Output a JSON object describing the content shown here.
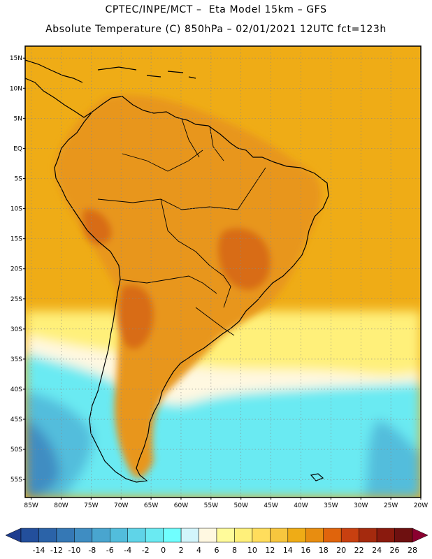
{
  "header": {
    "line1": "CPTEC/INPE/MCT –  Eta Model 15km – GFS",
    "line2": "Absolute Temperature (C) 850hPa – 02/01/2021 12UTC fct=123h"
  },
  "map": {
    "lat_labels": [
      "15N",
      "10N",
      "5N",
      "EQ",
      "5S",
      "10S",
      "15S",
      "20S",
      "25S",
      "30S",
      "35S",
      "40S",
      "45S",
      "50S",
      "55S"
    ],
    "lat_values": [
      15,
      10,
      5,
      0,
      -5,
      -10,
      -15,
      -20,
      -25,
      -30,
      -35,
      -40,
      -45,
      -50,
      -55
    ],
    "lon_labels": [
      "85W",
      "80W",
      "75W",
      "70W",
      "65W",
      "60W",
      "55W",
      "50W",
      "45W",
      "40W",
      "35W",
      "30W",
      "25W",
      "20W"
    ],
    "lon_values": [
      -85,
      -80,
      -75,
      -70,
      -65,
      -60,
      -55,
      -50,
      -45,
      -40,
      -35,
      -30,
      -25,
      -20
    ],
    "lat_range": [
      -58,
      17
    ],
    "lon_range": [
      -86,
      -20
    ]
  },
  "colorbar": {
    "labels": [
      "-14",
      "-12",
      "-10",
      "-8",
      "-6",
      "-4",
      "-2",
      "0",
      "2",
      "4",
      "6",
      "8",
      "10",
      "12",
      "14",
      "16",
      "18",
      "20",
      "22",
      "24",
      "26",
      "28"
    ],
    "colors": [
      "#1e3d8f",
      "#234f9c",
      "#2b63a8",
      "#3578b5",
      "#3f8dc2",
      "#49a5cf",
      "#52bddc",
      "#5fd4e8",
      "#6aeaf2",
      "#70ffff",
      "#d2f5fb",
      "#fff8e1",
      "#fffb9a",
      "#fff07a",
      "#ffdd5c",
      "#f7c63e",
      "#efac16",
      "#e88d10",
      "#e0640c",
      "#c84010",
      "#a52a0e",
      "#8a1a0e",
      "#6e1010",
      "#8a0030"
    ]
  },
  "temperature_regions": {
    "ocean_north": "#efac16",
    "continent": "#e8961a",
    "hot_core": "#d86c18",
    "south_warm": "#fff07a",
    "south_mild": "#fff8e1",
    "south_cold": "#6aeaf2",
    "south_colder": "#52bddc",
    "south_coldest": "#3f8dc2"
  }
}
